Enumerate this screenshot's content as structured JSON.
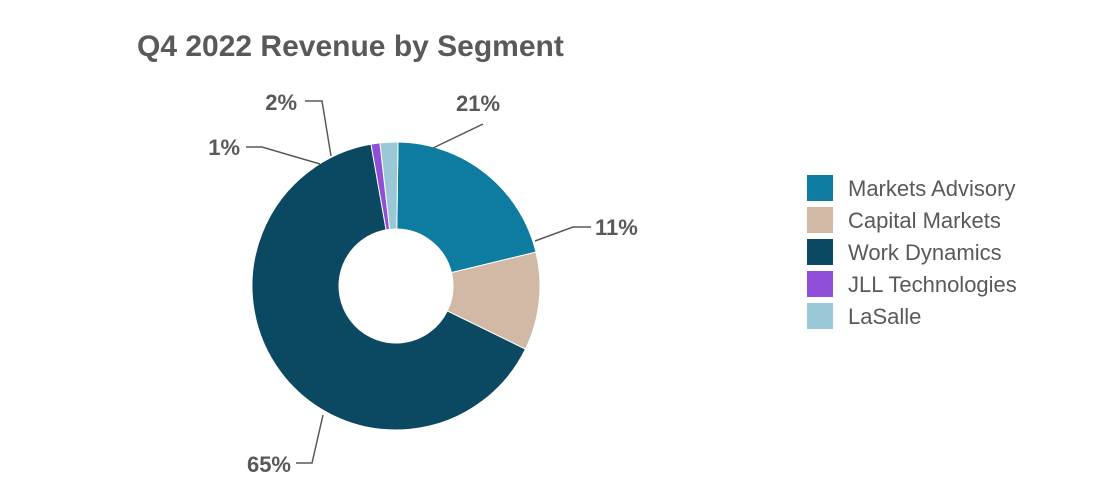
{
  "chart_data": {
    "type": "pie",
    "variant": "donut",
    "title": "Q4 2022 Revenue by Segment",
    "legend_position": "right",
    "series": [
      {
        "name": "Markets Advisory",
        "value": 21,
        "label": "21%",
        "color": "#0e7ba1"
      },
      {
        "name": "Capital Markets",
        "value": 11,
        "label": "11%",
        "color": "#d1b9a6"
      },
      {
        "name": "Work Dynamics",
        "value": 65,
        "label": "65%",
        "color": "#0b4862"
      },
      {
        "name": "JLL Technologies",
        "value": 1,
        "label": "1%",
        "color": "#8f4fd9"
      },
      {
        "name": "LaSalle",
        "value": 2,
        "label": "2%",
        "color": "#9bc8d6"
      }
    ]
  }
}
